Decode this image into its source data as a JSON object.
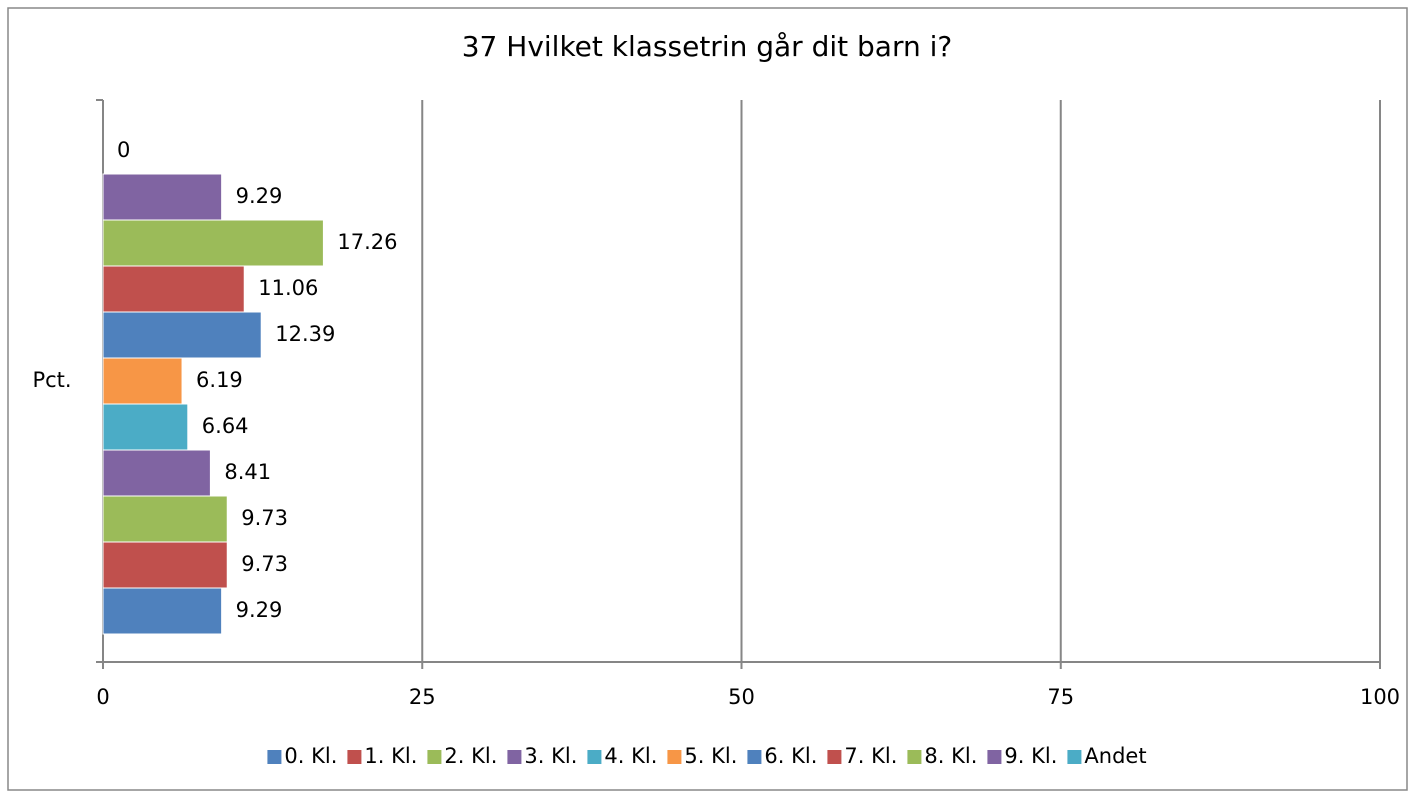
{
  "chart_data": {
    "type": "hbar",
    "title": "37 Hvilket klassetrin går dit barn i?",
    "categories": [
      "Pct."
    ],
    "series": [
      {
        "name": "0. Kl.",
        "color": "#4f81bd",
        "values": [
          9.29
        ]
      },
      {
        "name": "1. Kl.",
        "color": "#c0504d",
        "values": [
          9.73
        ]
      },
      {
        "name": "2. Kl.",
        "color": "#9bbb59",
        "values": [
          9.73
        ]
      },
      {
        "name": "3. Kl.",
        "color": "#8064a2",
        "values": [
          8.41
        ]
      },
      {
        "name": "4. Kl.",
        "color": "#4bacc6",
        "values": [
          6.64
        ]
      },
      {
        "name": "5. Kl.",
        "color": "#f79646",
        "values": [
          6.19
        ]
      },
      {
        "name": "6. Kl.",
        "color": "#4f81bd",
        "values": [
          12.39
        ]
      },
      {
        "name": "7. Kl.",
        "color": "#c0504d",
        "values": [
          11.06
        ]
      },
      {
        "name": "8. Kl.",
        "color": "#9bbb59",
        "values": [
          17.26
        ]
      },
      {
        "name": "9. Kl.",
        "color": "#8064a2",
        "values": [
          9.29
        ]
      },
      {
        "name": "Andet",
        "color": "#4bacc6",
        "values": [
          0
        ]
      }
    ],
    "xlim": [
      0,
      100
    ],
    "xticks": [
      0,
      25,
      50,
      75,
      100
    ],
    "grid": true,
    "legend": "bottom"
  }
}
